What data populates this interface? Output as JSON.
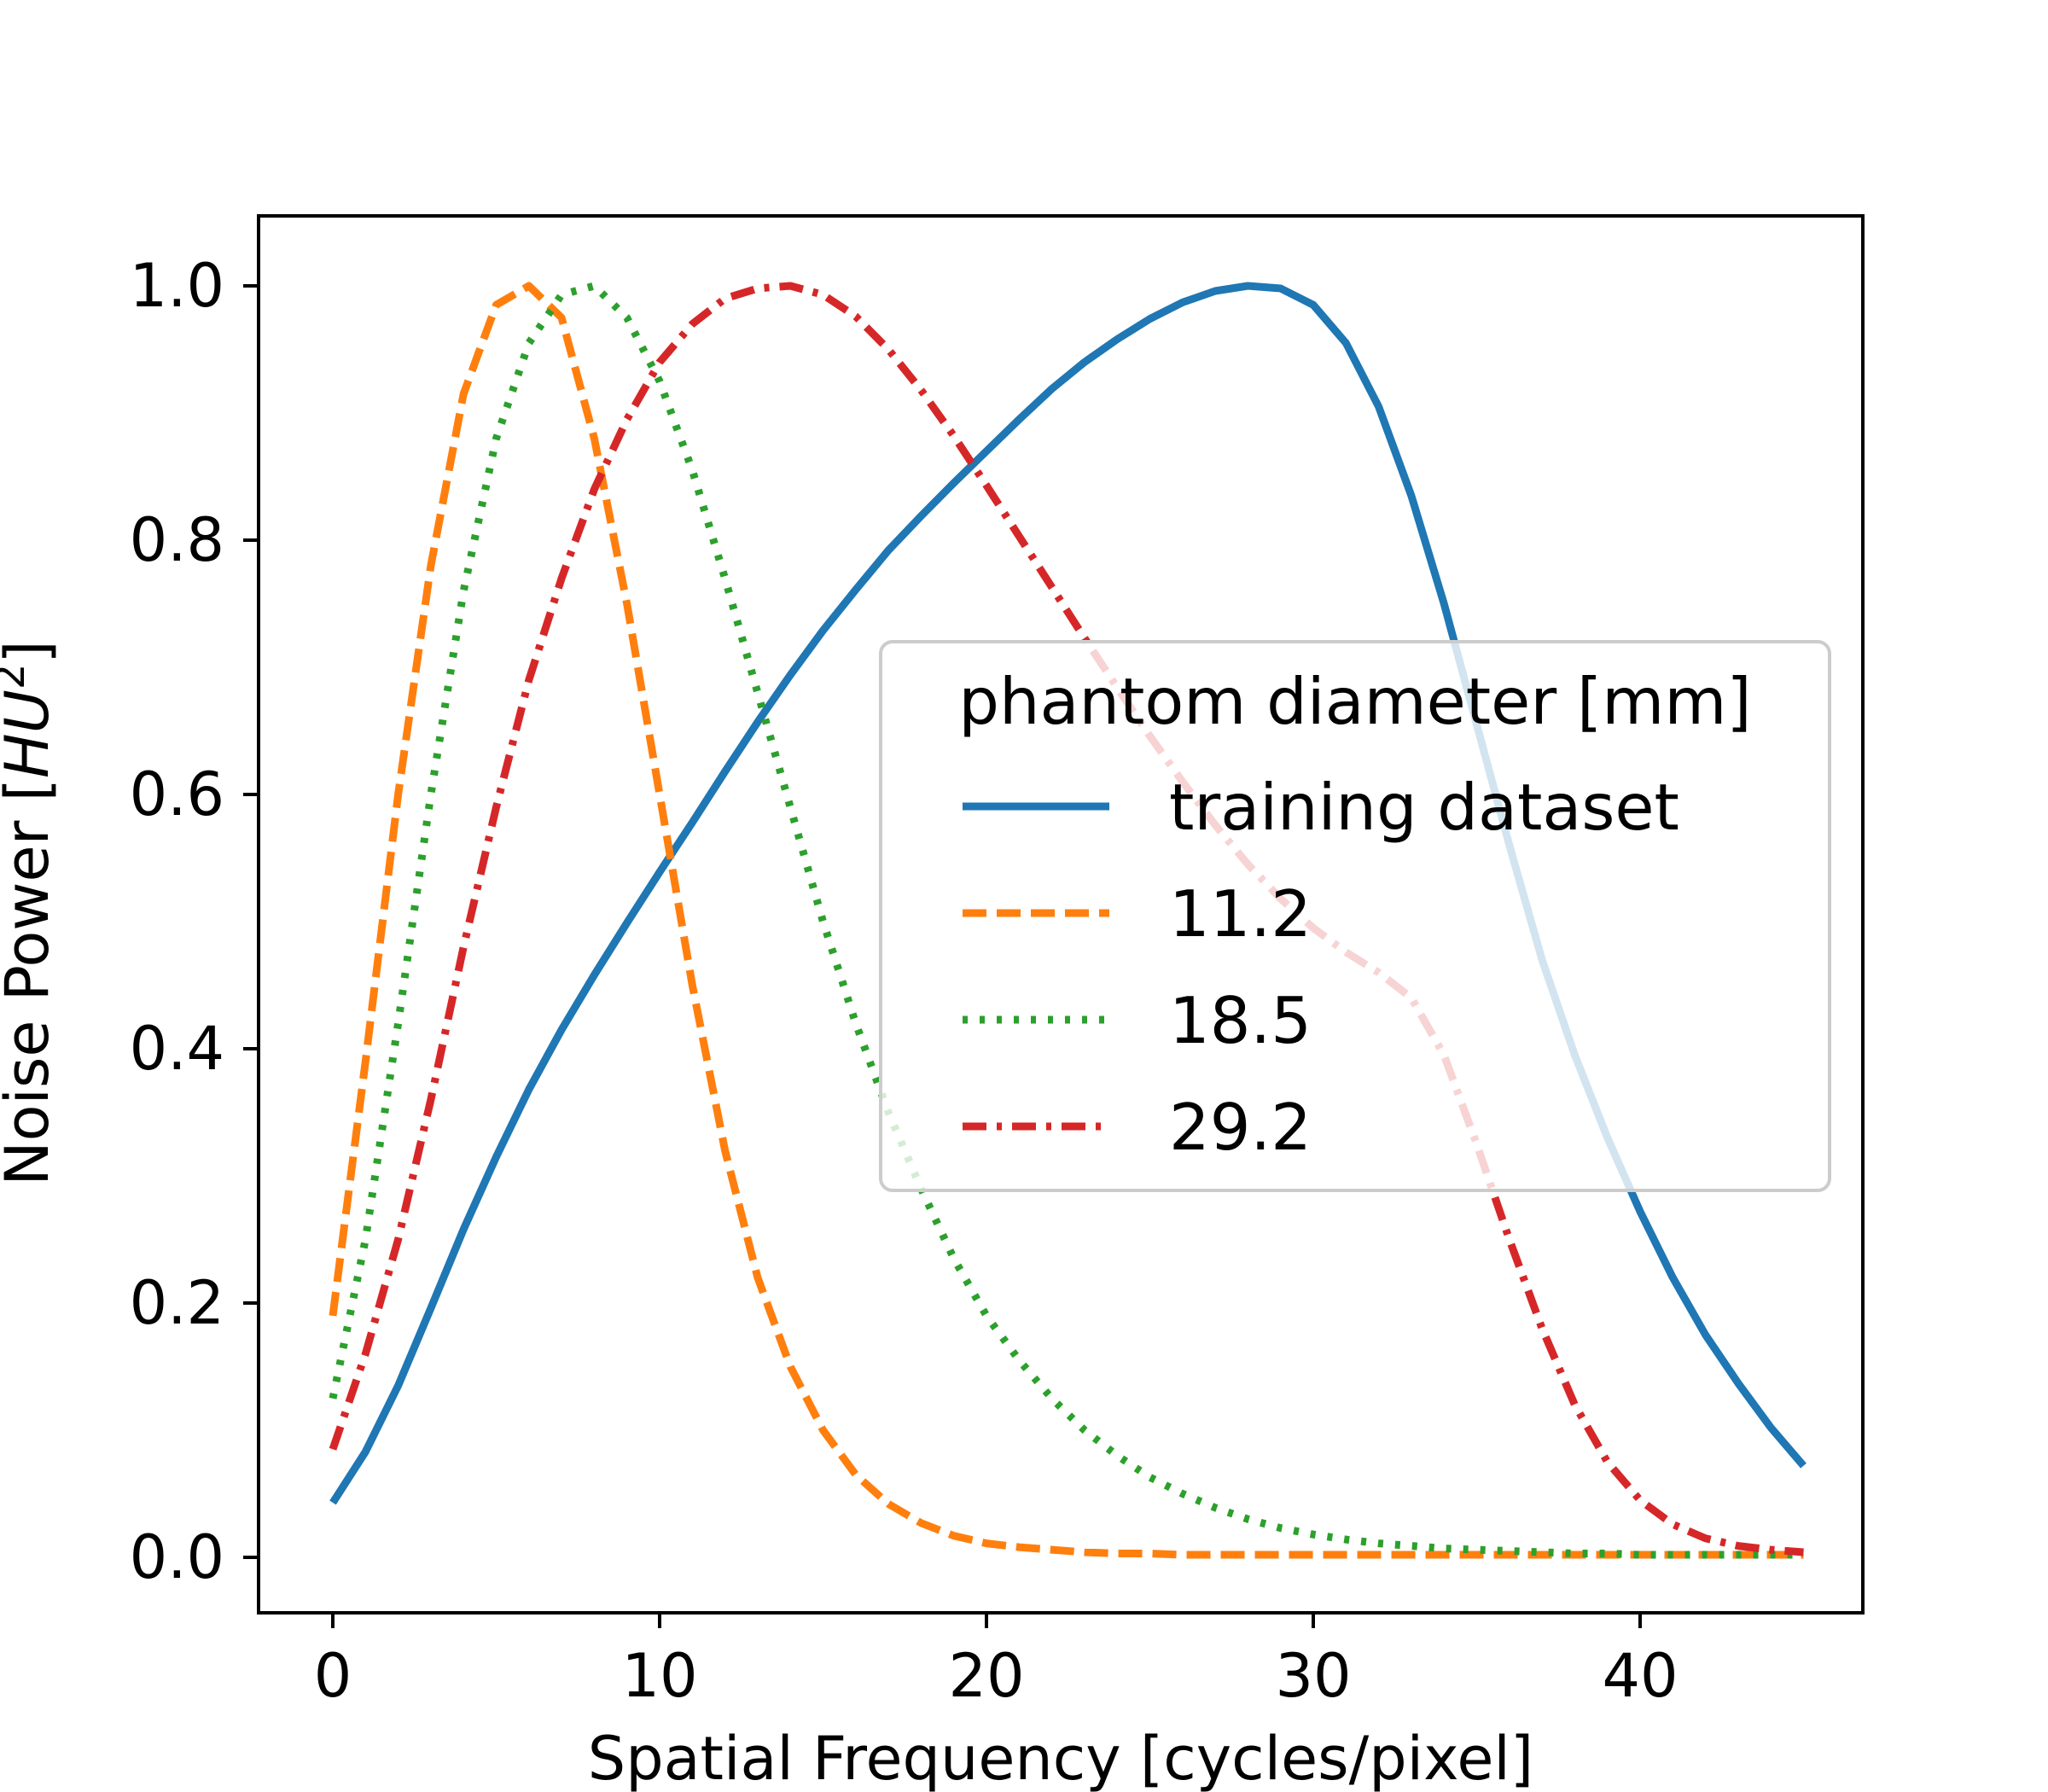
{
  "chart_data": {
    "type": "line",
    "title": "",
    "xlabel": "Spatial Frequency [cycles/pixel]",
    "ylabel": "Noise Power [HU²]",
    "ylabel_text": "Noise Power [",
    "ylabel_unit": "HU",
    "ylabel_sup": "2",
    "ylabel_end": "]",
    "xlim": [
      -2.2,
      47.2
    ],
    "ylim": [
      -0.05,
      1.05
    ],
    "xticks": [
      0,
      10,
      20,
      30,
      40
    ],
    "yticks": [
      0.0,
      0.2,
      0.4,
      0.6,
      0.8,
      1.0
    ],
    "xtick_labels": [
      "0",
      "10",
      "20",
      "30",
      "40"
    ],
    "ytick_labels": [
      "0.0",
      "0.2",
      "0.4",
      "0.6",
      "0.8",
      "1.0"
    ],
    "grid": false,
    "legend": {
      "title": "phantom diameter [mm]",
      "placement": "center-right",
      "entries": [
        "training dataset",
        "11.2",
        "18.5",
        "29.2"
      ]
    },
    "series": [
      {
        "name": "training dataset",
        "color": "#1f77b4",
        "style": "solid",
        "x": [
          0,
          1,
          2,
          3,
          4,
          5,
          6,
          7,
          8,
          9,
          10,
          11,
          12,
          13,
          14,
          15,
          16,
          17,
          18,
          19,
          20,
          21,
          22,
          23,
          24,
          25,
          26,
          27,
          28,
          29,
          30,
          31,
          32,
          33,
          34,
          35,
          36,
          37,
          38,
          39,
          40,
          41,
          42,
          43,
          44,
          45
        ],
        "y": [
          0.043,
          0.083,
          0.135,
          0.196,
          0.258,
          0.315,
          0.368,
          0.415,
          0.458,
          0.499,
          0.539,
          0.578,
          0.618,
          0.657,
          0.694,
          0.729,
          0.761,
          0.792,
          0.819,
          0.845,
          0.87,
          0.895,
          0.919,
          0.94,
          0.958,
          0.974,
          0.987,
          0.996,
          1.0,
          0.998,
          0.985,
          0.955,
          0.905,
          0.835,
          0.75,
          0.655,
          0.56,
          0.47,
          0.395,
          0.33,
          0.272,
          0.22,
          0.175,
          0.137,
          0.102,
          0.072
        ]
      },
      {
        "name": "11.2",
        "color": "#ff7f0e",
        "style": "dashed",
        "x": [
          0,
          1,
          2,
          3,
          4,
          5,
          6,
          7,
          8,
          9,
          10,
          11,
          12,
          13,
          14,
          15,
          16,
          17,
          18,
          19,
          20,
          21,
          22,
          23,
          24,
          25,
          26,
          27,
          28,
          29,
          30,
          31,
          32,
          33,
          34,
          35,
          36,
          37,
          38,
          39,
          40,
          41,
          42,
          43,
          44,
          45
        ],
        "y": [
          0.19,
          0.39,
          0.6,
          0.78,
          0.915,
          0.985,
          1.0,
          0.975,
          0.88,
          0.75,
          0.6,
          0.45,
          0.32,
          0.22,
          0.15,
          0.1,
          0.065,
          0.042,
          0.027,
          0.017,
          0.011,
          0.008,
          0.006,
          0.004,
          0.003,
          0.003,
          0.002,
          0.002,
          0.002,
          0.002,
          0.002,
          0.002,
          0.002,
          0.002,
          0.002,
          0.002,
          0.002,
          0.002,
          0.002,
          0.002,
          0.002,
          0.002,
          0.002,
          0.002,
          0.002,
          0.002
        ]
      },
      {
        "name": "18.5",
        "color": "#2ca02c",
        "style": "dotted",
        "x": [
          0,
          1,
          2,
          3,
          4,
          5,
          6,
          7,
          8,
          9,
          10,
          11,
          12,
          13,
          14,
          15,
          16,
          17,
          18,
          19,
          20,
          21,
          22,
          23,
          24,
          25,
          26,
          27,
          28,
          29,
          30,
          31,
          32,
          33,
          34,
          35,
          36,
          37,
          38,
          39,
          40,
          41,
          42,
          43,
          44,
          45
        ],
        "y": [
          0.125,
          0.25,
          0.42,
          0.6,
          0.76,
          0.88,
          0.955,
          0.993,
          1.0,
          0.975,
          0.925,
          0.855,
          0.77,
          0.68,
          0.59,
          0.5,
          0.42,
          0.35,
          0.29,
          0.235,
          0.19,
          0.155,
          0.125,
          0.1,
          0.08,
          0.063,
          0.05,
          0.039,
          0.03,
          0.023,
          0.018,
          0.014,
          0.011,
          0.009,
          0.007,
          0.006,
          0.005,
          0.004,
          0.003,
          0.003,
          0.002,
          0.002,
          0.002,
          0.002,
          0.002,
          0.002
        ]
      },
      {
        "name": "29.2",
        "color": "#d62728",
        "style": "dashdot",
        "x": [
          0,
          1,
          2,
          3,
          4,
          5,
          6,
          7,
          8,
          9,
          10,
          11,
          12,
          13,
          14,
          15,
          16,
          17,
          18,
          19,
          20,
          21,
          22,
          23,
          24,
          25,
          26,
          27,
          28,
          29,
          30,
          31,
          32,
          33,
          34,
          35,
          36,
          37,
          38,
          39,
          40,
          41,
          42,
          43,
          44,
          45
        ],
        "y": [
          0.085,
          0.16,
          0.25,
          0.36,
          0.48,
          0.59,
          0.69,
          0.77,
          0.84,
          0.895,
          0.94,
          0.97,
          0.99,
          0.998,
          1.0,
          0.993,
          0.976,
          0.95,
          0.918,
          0.882,
          0.843,
          0.803,
          0.763,
          0.723,
          0.684,
          0.646,
          0.61,
          0.576,
          0.545,
          0.518,
          0.495,
          0.476,
          0.46,
          0.44,
          0.395,
          0.325,
          0.25,
          0.18,
          0.12,
          0.075,
          0.045,
          0.026,
          0.015,
          0.009,
          0.006,
          0.004
        ]
      }
    ]
  }
}
